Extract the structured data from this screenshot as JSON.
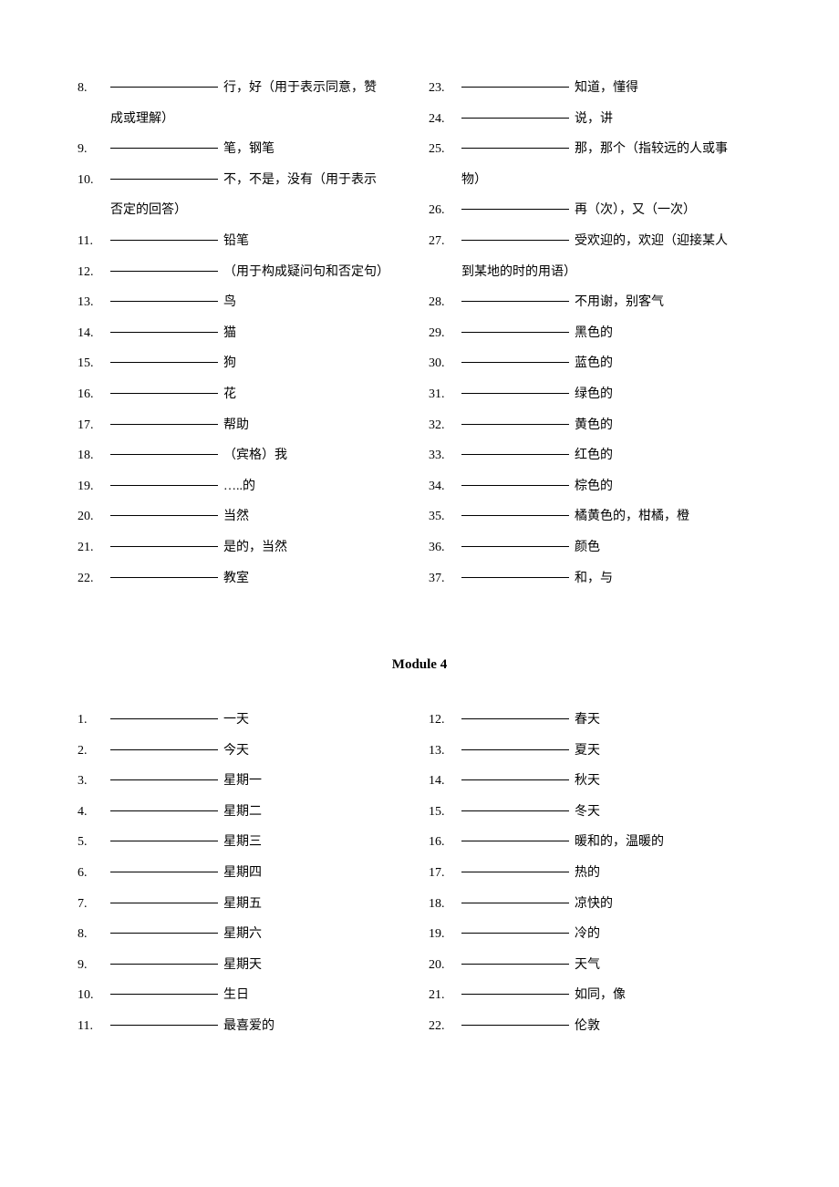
{
  "section1": {
    "left": [
      {
        "num": "8.",
        "text": "行，好（用于表示同意，赞",
        "cont": "成或理解）"
      },
      {
        "num": "9.",
        "text": "笔，钢笔"
      },
      {
        "num": "10.",
        "text": "不，不是，没有（用于表示",
        "cont": "否定的回答）"
      },
      {
        "num": "11.",
        "text": "铅笔"
      },
      {
        "num": "12.",
        "text": "（用于构成疑问句和否定句）"
      },
      {
        "num": "13.",
        "text": "鸟"
      },
      {
        "num": "14.",
        "text": "猫"
      },
      {
        "num": "15.",
        "text": "狗"
      },
      {
        "num": "16.",
        "text": "花"
      },
      {
        "num": "17.",
        "text": "帮助"
      },
      {
        "num": "18.",
        "text": "（宾格）我"
      },
      {
        "num": "19.",
        "text": "…..的"
      },
      {
        "num": "20.",
        "text": "当然"
      },
      {
        "num": "21.",
        "text": "是的，当然"
      },
      {
        "num": "22.",
        "text": "教室"
      }
    ],
    "right": [
      {
        "num": "23.",
        "text": "知道，懂得"
      },
      {
        "num": "24.",
        "text": "说，讲"
      },
      {
        "num": "25.",
        "text": "那，那个（指较远的人或事",
        "cont": "物）"
      },
      {
        "num": "26.",
        "text": "再（次），又（一次）"
      },
      {
        "num": "27.",
        "text": "受欢迎的，欢迎（迎接某人",
        "cont": "到某地的时的用语）"
      },
      {
        "num": "28.",
        "text": "不用谢，别客气"
      },
      {
        "num": "29.",
        "text": "黑色的"
      },
      {
        "num": "30.",
        "text": "蓝色的"
      },
      {
        "num": "31.",
        "text": "绿色的"
      },
      {
        "num": "32.",
        "text": "黄色的"
      },
      {
        "num": "33.",
        "text": "红色的"
      },
      {
        "num": "34.",
        "text": "棕色的"
      },
      {
        "num": "35.",
        "text": "橘黄色的，柑橘，橙"
      },
      {
        "num": "36.",
        "text": "颜色"
      },
      {
        "num": "37.",
        "text": "和，与"
      }
    ]
  },
  "moduleTitle": "Module 4",
  "section2": {
    "left": [
      {
        "num": "1.",
        "text": "一天"
      },
      {
        "num": "2.",
        "text": "今天"
      },
      {
        "num": "3.",
        "text": "星期一"
      },
      {
        "num": "4.",
        "text": "星期二"
      },
      {
        "num": "5.",
        "text": "星期三"
      },
      {
        "num": "6.",
        "text": "星期四"
      },
      {
        "num": "7.",
        "text": "星期五"
      },
      {
        "num": "8.",
        "text": "星期六"
      },
      {
        "num": "9.",
        "text": "星期天"
      },
      {
        "num": "10.",
        "text": "生日"
      },
      {
        "num": "11.",
        "text": "最喜爱的"
      }
    ],
    "right": [
      {
        "num": "12.",
        "text": "春天"
      },
      {
        "num": "13.",
        "text": "夏天"
      },
      {
        "num": "14.",
        "text": "秋天"
      },
      {
        "num": "15.",
        "text": "冬天"
      },
      {
        "num": "16.",
        "text": "暖和的，温暖的"
      },
      {
        "num": "17.",
        "text": "热的"
      },
      {
        "num": "18.",
        "text": "凉快的"
      },
      {
        "num": "19.",
        "text": "冷的"
      },
      {
        "num": "20.",
        "text": "天气"
      },
      {
        "num": "21.",
        "text": "如同，像"
      },
      {
        "num": "22.",
        "text": "伦敦"
      }
    ]
  }
}
